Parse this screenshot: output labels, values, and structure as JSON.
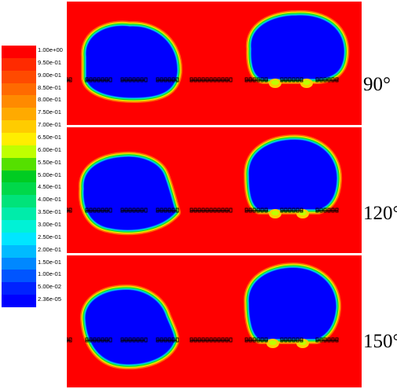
{
  "legend": {
    "title": "",
    "entries": [
      {
        "label": "1.00e+00",
        "color": "#ff0000"
      },
      {
        "label": "9.50e-01",
        "color": "#ff2a00"
      },
      {
        "label": "9.00e-01",
        "color": "#ff4a00"
      },
      {
        "label": "8.50e-01",
        "color": "#ff6a00"
      },
      {
        "label": "8.00e-01",
        "color": "#ff8a00"
      },
      {
        "label": "7.50e-01",
        "color": "#ffaa00"
      },
      {
        "label": "7.00e-01",
        "color": "#ffcc00"
      },
      {
        "label": "6.50e-01",
        "color": "#ffee00"
      },
      {
        "label": "6.00e-01",
        "color": "#bfff00"
      },
      {
        "label": "5.50e-01",
        "color": "#55e000"
      },
      {
        "label": "5.00e-01",
        "color": "#00cc22"
      },
      {
        "label": "4.50e-01",
        "color": "#00d84a"
      },
      {
        "label": "4.00e-01",
        "color": "#00e37a"
      },
      {
        "label": "3.50e-01",
        "color": "#00ecaa"
      },
      {
        "label": "3.00e-01",
        "color": "#00f2d6"
      },
      {
        "label": "2.50e-01",
        "color": "#00e6ff"
      },
      {
        "label": "2.00e-01",
        "color": "#00bbff"
      },
      {
        "label": "1.50e-01",
        "color": "#0088ff"
      },
      {
        "label": "1.00e-01",
        "color": "#0055ff"
      },
      {
        "label": "5.00e-02",
        "color": "#0022ff"
      },
      {
        "label": "2.36e-05",
        "color": "#0000ff"
      }
    ]
  },
  "panels": [
    {
      "angle": "90°",
      "left_bubble": "round",
      "right_bubble": "round-with-feet"
    },
    {
      "angle": "120°",
      "left_bubble": "tilted",
      "right_bubble": "round-with-feet"
    },
    {
      "angle": "150°",
      "left_bubble": "round",
      "right_bubble": "round-with-feet"
    }
  ],
  "colors": {
    "background": "#ff0000",
    "bubble_core": "#0000ff",
    "electrode": "#000000"
  }
}
